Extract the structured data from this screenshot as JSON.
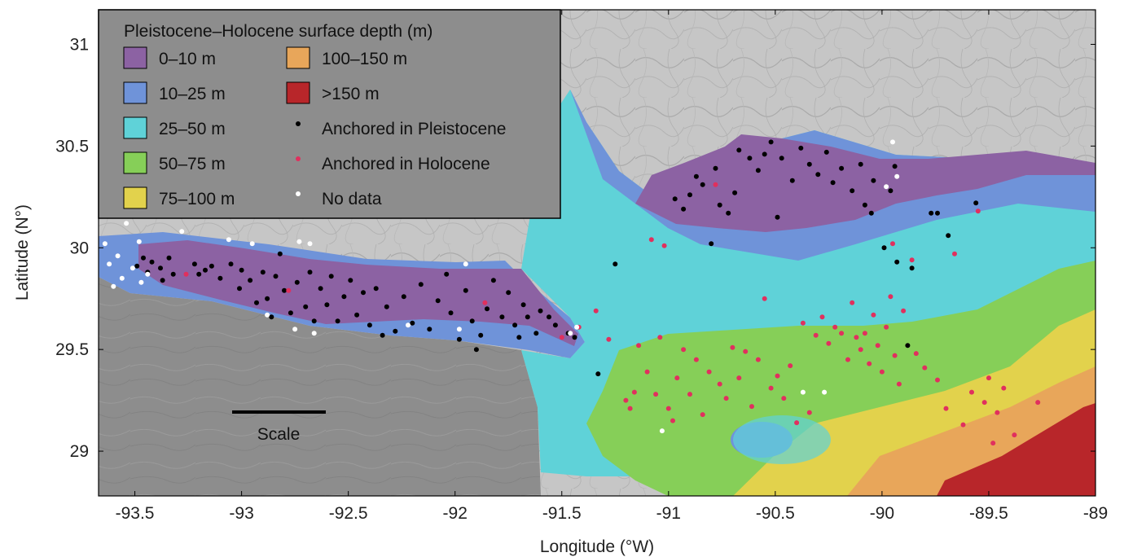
{
  "map": {
    "xlabel": "Longitude (°W)",
    "ylabel": "Latitude (N°)",
    "x_ticks": [
      "-93.5",
      "-93",
      "-92.5",
      "-92",
      "-91.5",
      "-91",
      "-90.5",
      "-90",
      "-89.5",
      "-89"
    ],
    "x_tick_values": [
      -93.5,
      -93,
      -92.5,
      -92,
      -91.5,
      -91,
      -90.5,
      -90,
      -89.5,
      -89
    ],
    "y_ticks": [
      "31",
      "30.5",
      "30",
      "29.5",
      "29"
    ],
    "y_tick_values": [
      31,
      30.5,
      30,
      29.5,
      29
    ],
    "xlim": [
      -93.67,
      -89.0
    ],
    "ylim": [
      28.78,
      31.17
    ],
    "scale_label": "Scale"
  },
  "legend": {
    "title": "Pleistocene–Holocene surface depth (m)",
    "depth_classes": [
      {
        "label": "0–10 m",
        "color": "#8c62a3"
      },
      {
        "label": "10–25 m",
        "color": "#6f93d9"
      },
      {
        "label": "25–50 m",
        "color": "#5fd2d8"
      },
      {
        "label": "50–75 m",
        "color": "#86cf58"
      },
      {
        "label": "75–100 m",
        "color": "#e2d24c"
      },
      {
        "label": "100–150 m",
        "color": "#e8a65a"
      },
      {
        "label": ">150 m",
        "color": "#b8262a"
      }
    ],
    "point_classes": [
      {
        "label": "Anchored in Pleistocene",
        "color": "#000000"
      },
      {
        "label": "Anchored in Holocene",
        "color": "#e0305e"
      },
      {
        "label": "No data",
        "color": "#ffffff"
      }
    ]
  },
  "colors": {
    "background_gray": "#8e8e8e",
    "upland_gray": "#c9c9c9",
    "legend_bg": "#8d8d8d"
  },
  "points": {
    "pleistocene": [
      [
        -93.49,
        29.91
      ],
      [
        -93.46,
        29.95
      ],
      [
        -93.44,
        29.88
      ],
      [
        -93.42,
        29.93
      ],
      [
        -93.38,
        29.9
      ],
      [
        -93.37,
        29.84
      ],
      [
        -93.34,
        29.95
      ],
      [
        -93.32,
        29.87
      ],
      [
        -93.22,
        29.92
      ],
      [
        -93.2,
        29.87
      ],
      [
        -93.17,
        29.89
      ],
      [
        -93.14,
        29.91
      ],
      [
        -93.1,
        29.85
      ],
      [
        -93.05,
        29.92
      ],
      [
        -93.01,
        29.8
      ],
      [
        -93,
        29.89
      ],
      [
        -92.96,
        29.84
      ],
      [
        -92.93,
        29.73
      ],
      [
        -92.9,
        29.88
      ],
      [
        -92.88,
        29.75
      ],
      [
        -92.86,
        29.66
      ],
      [
        -92.84,
        29.86
      ],
      [
        -92.82,
        29.97
      ],
      [
        -92.8,
        29.79
      ],
      [
        -92.77,
        29.68
      ],
      [
        -92.74,
        29.83
      ],
      [
        -92.7,
        29.71
      ],
      [
        -92.68,
        29.88
      ],
      [
        -92.66,
        29.64
      ],
      [
        -92.63,
        29.8
      ],
      [
        -92.6,
        29.72
      ],
      [
        -92.58,
        29.86
      ],
      [
        -92.55,
        29.64
      ],
      [
        -92.52,
        29.76
      ],
      [
        -92.49,
        29.84
      ],
      [
        -92.46,
        29.67
      ],
      [
        -92.43,
        29.78
      ],
      [
        -92.4,
        29.62
      ],
      [
        -92.37,
        29.8
      ],
      [
        -92.34,
        29.57
      ],
      [
        -92.32,
        29.71
      ],
      [
        -92.28,
        29.59
      ],
      [
        -92.24,
        29.76
      ],
      [
        -92.2,
        29.63
      ],
      [
        -92.16,
        29.82
      ],
      [
        -92.12,
        29.6
      ],
      [
        -92.08,
        29.74
      ],
      [
        -92.04,
        29.87
      ],
      [
        -92.02,
        29.68
      ],
      [
        -91.98,
        29.55
      ],
      [
        -91.95,
        29.79
      ],
      [
        -91.92,
        29.64
      ],
      [
        -91.9,
        29.5
      ],
      [
        -91.88,
        29.57
      ],
      [
        -91.85,
        29.7
      ],
      [
        -91.82,
        29.84
      ],
      [
        -91.78,
        29.66
      ],
      [
        -91.75,
        29.78
      ],
      [
        -91.72,
        29.62
      ],
      [
        -91.7,
        29.56
      ],
      [
        -91.68,
        29.72
      ],
      [
        -91.66,
        29.66
      ],
      [
        -91.62,
        29.58
      ],
      [
        -91.6,
        29.69
      ],
      [
        -91.56,
        29.66
      ],
      [
        -91.53,
        29.62
      ],
      [
        -91.47,
        29.58
      ],
      [
        -91.44,
        29.56
      ],
      [
        -91.33,
        29.38
      ],
      [
        -91.25,
        29.92
      ],
      [
        -90.97,
        30.24
      ],
      [
        -90.93,
        30.19
      ],
      [
        -90.9,
        30.26
      ],
      [
        -90.87,
        30.35
      ],
      [
        -90.84,
        30.31
      ],
      [
        -90.8,
        30.02
      ],
      [
        -90.78,
        30.39
      ],
      [
        -90.76,
        30.21
      ],
      [
        -90.72,
        30.17
      ],
      [
        -90.69,
        30.27
      ],
      [
        -90.67,
        30.48
      ],
      [
        -90.62,
        30.44
      ],
      [
        -90.58,
        30.38
      ],
      [
        -90.55,
        30.46
      ],
      [
        -90.52,
        30.52
      ],
      [
        -90.49,
        30.15
      ],
      [
        -90.47,
        30.44
      ],
      [
        -90.42,
        30.33
      ],
      [
        -90.38,
        30.49
      ],
      [
        -90.34,
        30.41
      ],
      [
        -90.3,
        30.36
      ],
      [
        -90.26,
        30.47
      ],
      [
        -90.23,
        30.32
      ],
      [
        -90.19,
        30.39
      ],
      [
        -90.14,
        30.28
      ],
      [
        -90.1,
        30.41
      ],
      [
        -90.08,
        30.21
      ],
      [
        -90.05,
        30.17
      ],
      [
        -90.04,
        30.33
      ],
      [
        -89.99,
        30
      ],
      [
        -89.96,
        30.28
      ],
      [
        -89.94,
        30.4
      ],
      [
        -89.93,
        29.93
      ],
      [
        -89.88,
        29.52
      ],
      [
        -89.86,
        29.9
      ],
      [
        -89.77,
        30.17
      ],
      [
        -89.74,
        30.17
      ],
      [
        -89.69,
        30.06
      ],
      [
        -89.56,
        30.22
      ]
    ],
    "holocene": [
      [
        -93.26,
        29.87
      ],
      [
        -92.78,
        29.79
      ],
      [
        -91.86,
        29.73
      ],
      [
        -91.5,
        29.56
      ],
      [
        -91.42,
        29.61
      ],
      [
        -91.34,
        29.69
      ],
      [
        -91.28,
        29.55
      ],
      [
        -91.2,
        29.25
      ],
      [
        -91.18,
        29.21
      ],
      [
        -91.16,
        29.29
      ],
      [
        -91.14,
        29.52
      ],
      [
        -91.1,
        29.39
      ],
      [
        -91.08,
        30.04
      ],
      [
        -91.06,
        29.28
      ],
      [
        -91.04,
        29.56
      ],
      [
        -91.02,
        30.01
      ],
      [
        -91,
        29.21
      ],
      [
        -90.98,
        29.15
      ],
      [
        -90.96,
        29.36
      ],
      [
        -90.93,
        29.5
      ],
      [
        -90.9,
        29.28
      ],
      [
        -90.87,
        29.45
      ],
      [
        -90.84,
        29.18
      ],
      [
        -90.81,
        29.39
      ],
      [
        -90.78,
        30.31
      ],
      [
        -90.76,
        29.33
      ],
      [
        -90.73,
        29.26
      ],
      [
        -90.7,
        29.51
      ],
      [
        -90.67,
        29.36
      ],
      [
        -90.64,
        29.49
      ],
      [
        -90.61,
        29.22
      ],
      [
        -90.58,
        29.45
      ],
      [
        -90.55,
        29.75
      ],
      [
        -90.52,
        29.31
      ],
      [
        -90.49,
        29.37
      ],
      [
        -90.46,
        29.26
      ],
      [
        -90.43,
        29.42
      ],
      [
        -90.4,
        29.14
      ],
      [
        -90.37,
        29.63
      ],
      [
        -90.34,
        29.19
      ],
      [
        -90.31,
        29.57
      ],
      [
        -90.28,
        29.66
      ],
      [
        -90.25,
        29.53
      ],
      [
        -90.22,
        29.61
      ],
      [
        -90.19,
        29.58
      ],
      [
        -90.16,
        29.45
      ],
      [
        -90.14,
        29.73
      ],
      [
        -90.12,
        29.56
      ],
      [
        -90.1,
        29.5
      ],
      [
        -90.08,
        29.58
      ],
      [
        -90.06,
        29.43
      ],
      [
        -90.04,
        29.67
      ],
      [
        -90.02,
        29.52
      ],
      [
        -90,
        29.39
      ],
      [
        -89.98,
        29.61
      ],
      [
        -89.96,
        29.76
      ],
      [
        -89.94,
        29.47
      ],
      [
        -89.92,
        29.33
      ],
      [
        -89.9,
        29.69
      ],
      [
        -89.86,
        29.94
      ],
      [
        -89.84,
        29.48
      ],
      [
        -89.8,
        29.41
      ],
      [
        -89.74,
        29.35
      ],
      [
        -89.7,
        29.21
      ],
      [
        -89.66,
        29.97
      ],
      [
        -89.62,
        29.13
      ],
      [
        -89.58,
        29.29
      ],
      [
        -89.55,
        30.18
      ],
      [
        -89.52,
        29.24
      ],
      [
        -89.5,
        29.36
      ],
      [
        -89.48,
        29.04
      ],
      [
        -89.46,
        29.19
      ],
      [
        -89.43,
        29.31
      ],
      [
        -89.38,
        29.08
      ],
      [
        -89.27,
        29.24
      ],
      [
        -89.95,
        30.02
      ]
    ],
    "nodata": [
      [
        -93.64,
        30.02
      ],
      [
        -93.62,
        29.92
      ],
      [
        -93.6,
        29.81
      ],
      [
        -93.58,
        29.96
      ],
      [
        -93.56,
        29.85
      ],
      [
        -93.54,
        30.12
      ],
      [
        -93.51,
        29.9
      ],
      [
        -93.48,
        30.03
      ],
      [
        -93.47,
        29.83
      ],
      [
        -93.44,
        29.87
      ],
      [
        -93.28,
        30.08
      ],
      [
        -93.06,
        30.04
      ],
      [
        -92.95,
        30.02
      ],
      [
        -92.88,
        29.67
      ],
      [
        -92.75,
        29.6
      ],
      [
        -92.73,
        30.03
      ],
      [
        -92.68,
        30.02
      ],
      [
        -92.66,
        29.58
      ],
      [
        -92.22,
        29.62
      ],
      [
        -91.98,
        29.6
      ],
      [
        -91.95,
        29.92
      ],
      [
        -91.46,
        29.58
      ],
      [
        -91.43,
        29.61
      ],
      [
        -91.03,
        29.1
      ],
      [
        -90.37,
        29.29
      ],
      [
        -90.27,
        29.29
      ],
      [
        -89.95,
        30.52
      ],
      [
        -89.93,
        30.35
      ],
      [
        -89.98,
        30.3
      ]
    ]
  }
}
